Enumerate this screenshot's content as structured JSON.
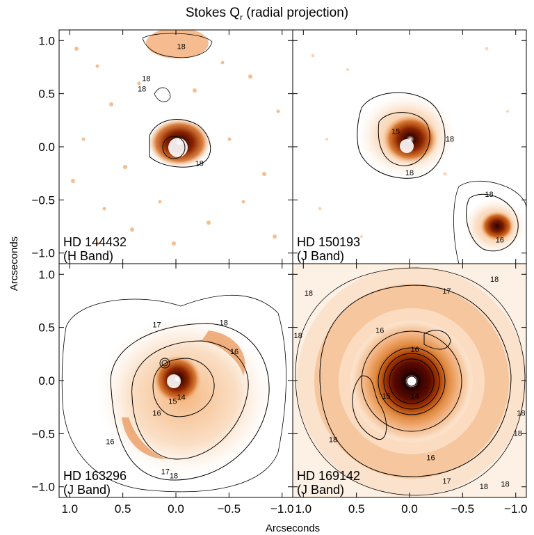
{
  "figure": {
    "title_main": "Stokes Q",
    "title_sub": "r",
    "title_rest": " (radial projection)",
    "xlabel": "Arcseconds",
    "ylabel": "Arcseconds",
    "colors": {
      "ink": "#000000",
      "deep": "#3a0600",
      "dark": "#7a1a00",
      "mid": "#d2691e",
      "light": "#f0a060",
      "faint": "#fbe2cc"
    }
  },
  "chart_data": {
    "type": "heatmap",
    "xlim": [
      1.1,
      -1.1
    ],
    "ylim": [
      -1.1,
      1.1
    ],
    "x_ticks": [
      1.0,
      0.5,
      0.0,
      -0.5,
      -1.0
    ],
    "x_tick_labels": [
      "1.0",
      "0.5",
      "0.0",
      "−0.5",
      "−1.0"
    ],
    "y_ticks": [
      1.0,
      0.5,
      0.0,
      -0.5,
      -1.0
    ],
    "y_tick_labels": [
      "1.0",
      "0.5",
      "0.0",
      "−0.5",
      "−1.0"
    ],
    "panels": [
      {
        "name": "HD 144432",
        "band": "(H Band)",
        "contour_labels": [
          {
            "text": "18",
            "x": -0.05,
            "y": 0.92
          },
          {
            "text": "18",
            "x": 0.28,
            "y": 0.62
          },
          {
            "text": "18",
            "x": 0.32,
            "y": 0.52
          },
          {
            "text": "18",
            "x": -0.22,
            "y": -0.18
          }
        ]
      },
      {
        "name": "HD 150193",
        "band": "(J Band)",
        "contour_labels": [
          {
            "text": "15",
            "x": 0.13,
            "y": 0.12
          },
          {
            "text": "18",
            "x": -0.38,
            "y": 0.05
          },
          {
            "text": "18",
            "x": 0.0,
            "y": -0.27
          },
          {
            "text": "18",
            "x": -0.75,
            "y": -0.47
          },
          {
            "text": "16",
            "x": -0.85,
            "y": -0.9
          }
        ]
      },
      {
        "name": "HD 163296",
        "band": "(J Band)",
        "contour_labels": [
          {
            "text": "17",
            "x": 0.18,
            "y": 0.5
          },
          {
            "text": "18",
            "x": -0.45,
            "y": 0.52
          },
          {
            "text": "16",
            "x": -0.55,
            "y": 0.25
          },
          {
            "text": "15",
            "x": 0.03,
            "y": -0.22
          },
          {
            "text": "14",
            "x": -0.05,
            "y": -0.18
          },
          {
            "text": "16",
            "x": 0.18,
            "y": -0.33
          },
          {
            "text": "16",
            "x": 0.62,
            "y": -0.6
          },
          {
            "text": "17",
            "x": 0.1,
            "y": -0.88
          },
          {
            "text": "18",
            "x": 0.02,
            "y": -0.92
          }
        ]
      },
      {
        "name": "HD 169142",
        "band": "(J Band)",
        "contour_labels": [
          {
            "text": "17",
            "x": -0.35,
            "y": 0.82
          },
          {
            "text": "18",
            "x": -0.8,
            "y": 0.93
          },
          {
            "text": "18",
            "x": 0.95,
            "y": 0.8
          },
          {
            "text": "18",
            "x": 1.05,
            "y": 0.4
          },
          {
            "text": "16",
            "x": 0.28,
            "y": 0.45
          },
          {
            "text": "16",
            "x": -0.05,
            "y": 0.27
          },
          {
            "text": "15",
            "x": 0.22,
            "y": -0.17
          },
          {
            "text": "14",
            "x": -0.05,
            "y": -0.17
          },
          {
            "text": "18",
            "x": 0.72,
            "y": -0.58
          },
          {
            "text": "18",
            "x": -1.05,
            "y": -0.33
          },
          {
            "text": "18",
            "x": -1.02,
            "y": -0.52
          },
          {
            "text": "16",
            "x": -0.2,
            "y": -0.75
          },
          {
            "text": "17",
            "x": -0.35,
            "y": -0.97
          },
          {
            "text": "18",
            "x": -0.7,
            "y": -1.02
          },
          {
            "text": "18",
            "x": -0.9,
            "y": -1.0
          }
        ]
      }
    ]
  }
}
